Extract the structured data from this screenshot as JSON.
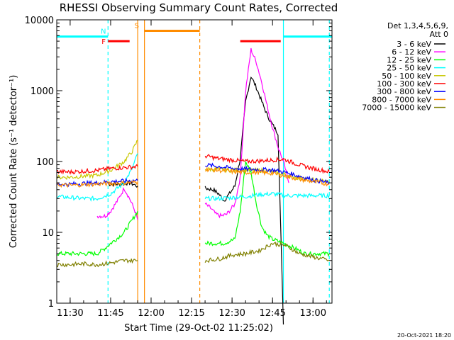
{
  "chart_data": {
    "type": "line",
    "title": "RHESSI Observing Summary Count Rates, Corrected",
    "xlabel": "Start Time (29-Oct-02 11:25:02)",
    "ylabel": "Corrected Count Rate (s⁻¹ detector⁻¹)",
    "yscale": "log",
    "ylim": [
      1,
      10000
    ],
    "xlim_minutes_from_11_25": [
      0,
      102
    ],
    "x_ticks": [
      "11:30",
      "11:45",
      "12:00",
      "12:15",
      "12:30",
      "12:45",
      "13:00"
    ],
    "y_ticks": [
      "1",
      "10",
      "100",
      "1000",
      "10000"
    ],
    "footer_stamp": "20-Oct-2021 18:20",
    "legend": {
      "header": [
        "Det 1,3,4,5,6,9,",
        "Att 0"
      ],
      "entries": [
        {
          "label": "3 - 6 keV",
          "color": "#000000"
        },
        {
          "label": "6 - 12 keV",
          "color": "#ff00ff"
        },
        {
          "label": "12 - 25 keV",
          "color": "#00ff00"
        },
        {
          "label": "25 - 50 keV",
          "color": "#00ffff"
        },
        {
          "label": "50 - 100 keV",
          "color": "#c8c800"
        },
        {
          "label": "100 - 300 keV",
          "color": "#ff0000"
        },
        {
          "label": "300 - 800 keV",
          "color": "#0000ff"
        },
        {
          "label": "800 - 7000 keV",
          "color": "#ff8c00"
        },
        {
          "label": "7000 - 15000 keV",
          "color": "#808000"
        }
      ]
    },
    "flag_bars": [
      {
        "label": "N",
        "color": "#00ffff",
        "x_ranges": [
          [
            0,
            19
          ],
          [
            84,
            102
          ]
        ],
        "y": 5800
      },
      {
        "label": "F",
        "color": "#ff0000",
        "x_ranges": [
          [
            19,
            27
          ],
          [
            68,
            83
          ]
        ],
        "y": 5000
      },
      {
        "label": "S",
        "color": "#ff8c00",
        "x_ranges": [
          [
            32.5,
            53
          ]
        ],
        "y": 7000
      }
    ],
    "vertical_lines": [
      {
        "x": 19,
        "color": "#00ffff",
        "style": "dashed"
      },
      {
        "x": 30,
        "color": "#ff8c00",
        "style": "solid"
      },
      {
        "x": 32.5,
        "color": "#ff8c00",
        "style": "solid"
      },
      {
        "x": 53,
        "color": "#ff8c00",
        "style": "dashed"
      },
      {
        "x": 84,
        "color": "#00ffff",
        "style": "solid"
      },
      {
        "x": 101,
        "color": "#00ffff",
        "style": "dashed"
      }
    ],
    "series": [
      {
        "name": "3 - 6 keV",
        "color": "#000000",
        "segments": [
          [
            [
              19,
              48
            ],
            [
              23,
              48
            ],
            [
              27,
              50
            ],
            [
              30,
              45
            ]
          ],
          [
            [
              55,
              42
            ],
            [
              58,
              40
            ],
            [
              60,
              35
            ],
            [
              62,
              28
            ],
            [
              64,
              35
            ],
            [
              66,
              45
            ],
            [
              68,
              110
            ],
            [
              70,
              700
            ],
            [
              72,
              1600
            ],
            [
              74,
              1100
            ],
            [
              76,
              700
            ],
            [
              78,
              450
            ],
            [
              80,
              330
            ],
            [
              82,
              250
            ],
            [
              84,
              0
            ]
          ]
        ]
      },
      {
        "name": "6 - 12 keV",
        "color": "#ff00ff",
        "segments": [
          [
            [
              15,
              17
            ],
            [
              18,
              17
            ],
            [
              20,
              20
            ],
            [
              23,
              30
            ],
            [
              25,
              42
            ],
            [
              27,
              30
            ],
            [
              29,
              20
            ],
            [
              30,
              15
            ]
          ],
          [
            [
              55,
              25
            ],
            [
              57,
              22
            ],
            [
              59,
              18
            ],
            [
              61,
              17
            ],
            [
              63,
              18
            ],
            [
              66,
              25
            ],
            [
              68,
              60
            ],
            [
              70,
              1000
            ],
            [
              72,
              3800
            ],
            [
              74,
              2500
            ],
            [
              76,
              1300
            ],
            [
              78,
              600
            ],
            [
              80,
              300
            ],
            [
              82,
              160
            ],
            [
              84,
              100
            ],
            [
              86,
              50
            ]
          ]
        ]
      },
      {
        "name": "12 - 25 keV",
        "color": "#00ff00",
        "segments": [
          [
            [
              0,
              5
            ],
            [
              5,
              5
            ],
            [
              10,
              5
            ],
            [
              15,
              5
            ],
            [
              18,
              6
            ],
            [
              20,
              7
            ],
            [
              22,
              8
            ],
            [
              25,
              10
            ],
            [
              28,
              15
            ],
            [
              30,
              20
            ]
          ],
          [
            [
              55,
              7
            ],
            [
              58,
              7
            ],
            [
              62,
              7
            ],
            [
              66,
              8
            ],
            [
              68,
              20
            ],
            [
              70,
              100
            ],
            [
              72,
              70
            ],
            [
              74,
              25
            ],
            [
              76,
              12
            ],
            [
              78,
              9
            ],
            [
              80,
              8
            ],
            [
              84,
              7
            ],
            [
              88,
              6
            ],
            [
              92,
              5
            ],
            [
              96,
              5
            ],
            [
              101,
              5
            ]
          ]
        ]
      },
      {
        "name": "25 - 50 keV",
        "color": "#00ffff",
        "segments": [
          [
            [
              0,
              32
            ],
            [
              5,
              31
            ],
            [
              10,
              30
            ],
            [
              15,
              30
            ],
            [
              20,
              35
            ],
            [
              25,
              50
            ],
            [
              28,
              80
            ],
            [
              30,
              130
            ]
          ],
          [
            [
              55,
              30
            ],
            [
              60,
              30
            ],
            [
              65,
              31
            ],
            [
              70,
              32
            ],
            [
              75,
              34
            ],
            [
              80,
              35
            ],
            [
              85,
              33
            ],
            [
              90,
              33
            ],
            [
              95,
              33
            ],
            [
              101,
              33
            ]
          ]
        ]
      },
      {
        "name": "50 - 100 keV",
        "color": "#c8c800",
        "segments": [
          [
            [
              0,
              60
            ],
            [
              5,
              60
            ],
            [
              10,
              62
            ],
            [
              15,
              64
            ],
            [
              20,
              75
            ],
            [
              25,
              100
            ],
            [
              28,
              140
            ],
            [
              30,
              200
            ]
          ],
          [
            [
              55,
              78
            ],
            [
              60,
              77
            ],
            [
              65,
              75
            ],
            [
              70,
              75
            ],
            [
              75,
              75
            ],
            [
              80,
              72
            ],
            [
              85,
              65
            ],
            [
              90,
              58
            ],
            [
              95,
              55
            ],
            [
              101,
              52
            ]
          ]
        ]
      },
      {
        "name": "100 - 300 keV",
        "color": "#ff0000",
        "segments": [
          [
            [
              0,
              72
            ],
            [
              5,
              71
            ],
            [
              10,
              73
            ],
            [
              15,
              75
            ],
            [
              20,
              80
            ],
            [
              25,
              82
            ],
            [
              30,
              85
            ]
          ],
          [
            [
              55,
              120
            ],
            [
              60,
              110
            ],
            [
              65,
              105
            ],
            [
              70,
              100
            ],
            [
              75,
              102
            ],
            [
              80,
              105
            ],
            [
              84,
              108
            ],
            [
              88,
              95
            ],
            [
              92,
              85
            ],
            [
              96,
              78
            ],
            [
              101,
              72
            ]
          ]
        ]
      },
      {
        "name": "300 - 800 keV",
        "color": "#0000ff",
        "segments": [
          [
            [
              0,
              48
            ],
            [
              5,
              48
            ],
            [
              10,
              49
            ],
            [
              15,
              50
            ],
            [
              20,
              52
            ],
            [
              25,
              53
            ],
            [
              30,
              54
            ]
          ],
          [
            [
              55,
              90
            ],
            [
              60,
              85
            ],
            [
              65,
              80
            ],
            [
              70,
              78
            ],
            [
              75,
              77
            ],
            [
              80,
              76
            ],
            [
              85,
              70
            ],
            [
              90,
              62
            ],
            [
              95,
              55
            ],
            [
              101,
              50
            ]
          ]
        ]
      },
      {
        "name": "800 - 7000 keV",
        "color": "#ff8c00",
        "segments": [
          [
            [
              0,
              47
            ],
            [
              5,
              46
            ],
            [
              10,
              47
            ],
            [
              15,
              48
            ],
            [
              20,
              49
            ],
            [
              25,
              50
            ],
            [
              30,
              51
            ]
          ],
          [
            [
              55,
              78
            ],
            [
              60,
              75
            ],
            [
              65,
              72
            ],
            [
              70,
              70
            ],
            [
              75,
              70
            ],
            [
              80,
              68
            ],
            [
              85,
              62
            ],
            [
              90,
              56
            ],
            [
              95,
              52
            ],
            [
              101,
              48
            ]
          ]
        ]
      },
      {
        "name": "7000 - 15000 keV",
        "color": "#808000",
        "segments": [
          [
            [
              0,
              3.5
            ],
            [
              5,
              3.5
            ],
            [
              10,
              3.6
            ],
            [
              15,
              3.5
            ],
            [
              20,
              3.7
            ],
            [
              25,
              4
            ],
            [
              30,
              4
            ]
          ],
          [
            [
              55,
              4
            ],
            [
              60,
              4.2
            ],
            [
              65,
              4.8
            ],
            [
              70,
              5
            ],
            [
              75,
              5.5
            ],
            [
              80,
              7
            ],
            [
              85,
              6.5
            ],
            [
              90,
              5
            ],
            [
              95,
              4.5
            ],
            [
              101,
              4
            ]
          ]
        ]
      }
    ]
  }
}
